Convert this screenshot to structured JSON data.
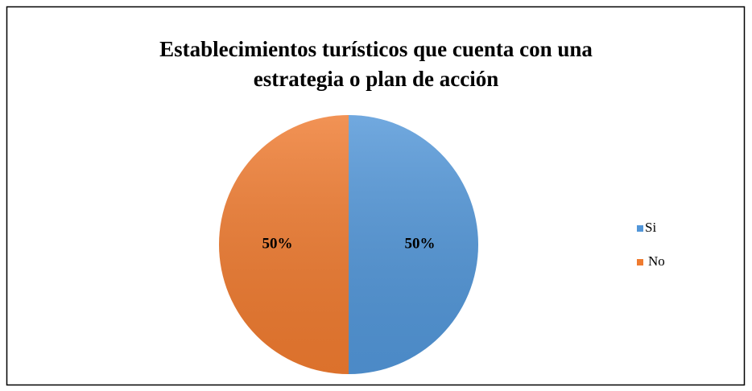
{
  "chart_data": {
    "type": "pie",
    "title": [
      "Establecimientos turísticos  que cuenta con una",
      "estrategia o plan de acción"
    ],
    "categories": [
      "Si",
      "No"
    ],
    "values": [
      50,
      50
    ],
    "value_labels": [
      "50%",
      "50%"
    ],
    "colors": [
      "#5296d8",
      "#ef7b30"
    ],
    "legend": "right"
  }
}
